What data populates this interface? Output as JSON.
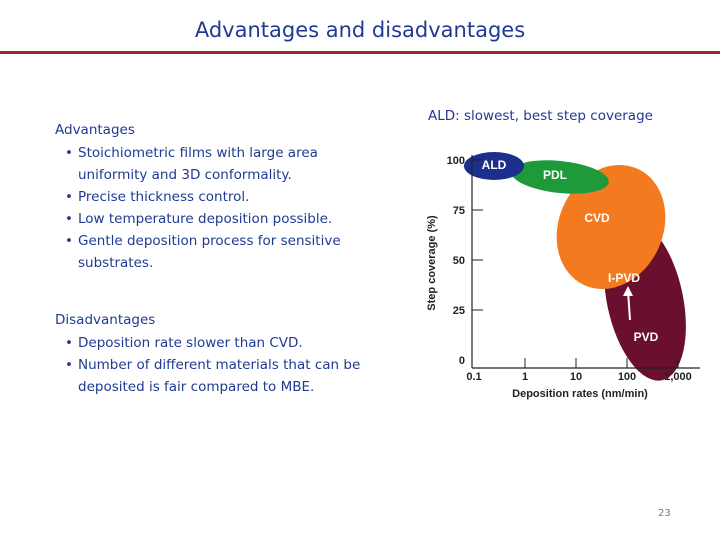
{
  "title": "Advantages and disadvantages",
  "advantages": {
    "heading": "Advantages",
    "items": [
      "Stoichiometric films with large area uniformity and 3D conformality.",
      "Precise thickness control.",
      "Low temperature deposition possible.",
      "Gentle deposition process for sensitive substrates."
    ]
  },
  "disadvantages": {
    "heading": "Disadvantages",
    "items": [
      "Deposition rate slower than CVD.",
      "Number of different materials that can be deposited is fair compared to MBE."
    ]
  },
  "figure": {
    "caption": "ALD: slowest, best step coverage",
    "y_label": "Step coverage (%)",
    "x_label": "Deposition rates (nm/min)",
    "y_ticks": [
      "100",
      "75",
      "50",
      "25",
      "0"
    ],
    "x_ticks": [
      "0.1",
      "1",
      "10",
      "100",
      "1,000"
    ],
    "regions": [
      "ALD",
      "PDL",
      "CVD",
      "I-PVD",
      "PVD"
    ]
  },
  "page_number": "23"
}
